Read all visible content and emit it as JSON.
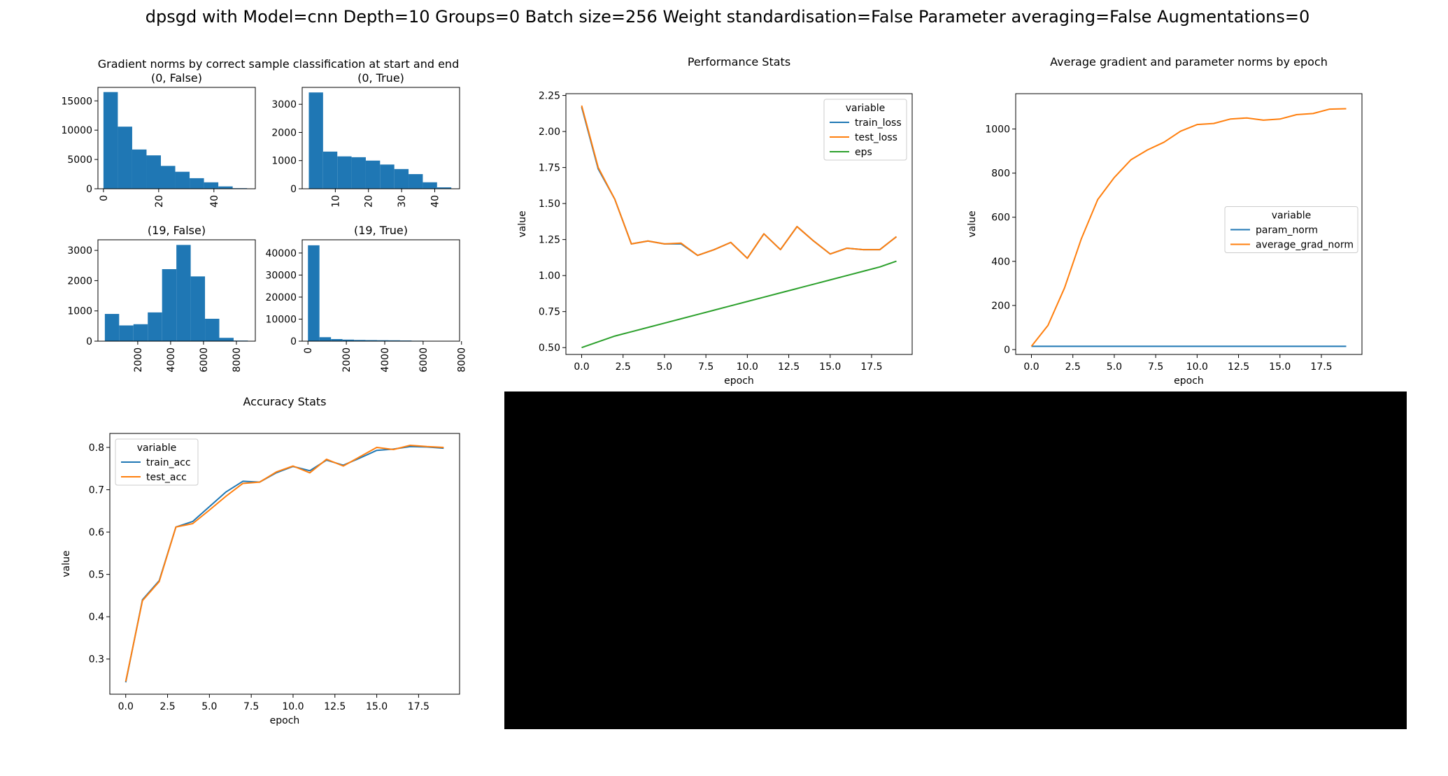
{
  "page_title": "dpsgd with Model=cnn Depth=10 Groups=0 Batch size=256 Weight standardisation=False Parameter averaging=False Augmentations=0",
  "colors": {
    "blue": "#1f77b4",
    "orange": "#ff7f0e",
    "green": "#2ca02c",
    "black_panel": "#000000"
  },
  "chart_data": [
    {
      "id": "gradient_norms",
      "type": "bar",
      "title": "Gradient norms by correct sample classification at start and end",
      "subplots": [
        {
          "id": "hist00",
          "title": "(0, False)",
          "type": "histogram",
          "bin_edges": [
            0,
            5.2,
            10.4,
            15.6,
            20.8,
            26.0,
            31.2,
            36.4,
            41.6,
            46.8,
            52.0
          ],
          "values": [
            16500,
            10600,
            6700,
            5700,
            3900,
            2900,
            1800,
            1100,
            400,
            100
          ],
          "xlim": [
            -2,
            55
          ],
          "ylim": [
            0,
            17300
          ],
          "xticks": [
            0,
            20,
            40
          ],
          "yticks": [
            0,
            5000,
            10000,
            15000
          ]
        },
        {
          "id": "hist01",
          "title": "(0, True)",
          "type": "histogram",
          "bin_edges": [
            2,
            6.3,
            10.6,
            14.9,
            19.2,
            23.5,
            27.8,
            32.1,
            36.4,
            40.7,
            45.0
          ],
          "values": [
            3420,
            1320,
            1150,
            1120,
            1000,
            860,
            700,
            520,
            230,
            50
          ],
          "xlim": [
            0,
            47.5
          ],
          "ylim": [
            0,
            3600
          ],
          "xticks": [
            10,
            20,
            30,
            40
          ],
          "yticks": [
            0,
            1000,
            2000,
            3000
          ]
        },
        {
          "id": "hist10",
          "title": "(19, False)",
          "type": "histogram",
          "bin_edges": [
            0,
            870,
            1740,
            2610,
            3480,
            4350,
            5220,
            6090,
            6960,
            7830,
            8700
          ],
          "values": [
            900,
            520,
            560,
            950,
            2380,
            3180,
            2140,
            740,
            110,
            20
          ],
          "xlim": [
            -420,
            9150
          ],
          "ylim": [
            0,
            3350
          ],
          "xticks": [
            2000,
            4000,
            6000,
            8000
          ],
          "yticks": [
            0,
            1000,
            2000,
            3000
          ]
        },
        {
          "id": "hist11",
          "title": "(19, True)",
          "type": "histogram",
          "bin_edges": [
            0,
            600,
            1200,
            1800,
            2400,
            3000,
            3600,
            4200,
            4800,
            5400,
            6000
          ],
          "values": [
            43500,
            1800,
            950,
            700,
            550,
            480,
            420,
            380,
            300,
            200
          ],
          "xlim": [
            -300,
            7900
          ],
          "ylim": [
            0,
            46000
          ],
          "xticks": [
            0,
            2000,
            4000,
            6000,
            8000
          ],
          "yticks": [
            0,
            10000,
            20000,
            30000,
            40000
          ]
        }
      ]
    },
    {
      "id": "performance",
      "type": "line",
      "title": "Performance Stats",
      "xlabel": "epoch",
      "ylabel": "value",
      "xlim": [
        -0.95,
        19.95
      ],
      "ylim": [
        0.4525,
        2.2625
      ],
      "xticks": [
        0.0,
        2.5,
        5.0,
        7.5,
        10.0,
        12.5,
        15.0,
        17.5
      ],
      "yticks": [
        0.5,
        0.75,
        1.0,
        1.25,
        1.5,
        1.75,
        2.0,
        2.25
      ],
      "x": [
        0,
        1,
        2,
        3,
        4,
        5,
        6,
        7,
        8,
        9,
        10,
        11,
        12,
        13,
        14,
        15,
        16,
        17,
        18,
        19
      ],
      "legend": {
        "title": "variable",
        "position": "upper right"
      },
      "series": [
        {
          "name": "train_loss",
          "color": "#1f77b4",
          "values": [
            2.17,
            1.74,
            1.53,
            1.22,
            1.24,
            1.22,
            1.22,
            1.14,
            1.18,
            1.23,
            1.12,
            1.29,
            1.18,
            1.34,
            1.24,
            1.15,
            1.19,
            1.18,
            1.18,
            1.27
          ]
        },
        {
          "name": "test_loss",
          "color": "#ff7f0e",
          "values": [
            2.18,
            1.75,
            1.53,
            1.22,
            1.24,
            1.22,
            1.225,
            1.14,
            1.18,
            1.23,
            1.12,
            1.29,
            1.18,
            1.34,
            1.24,
            1.15,
            1.19,
            1.18,
            1.18,
            1.27
          ]
        },
        {
          "name": "eps",
          "color": "#2ca02c",
          "values": [
            0.5,
            0.54,
            0.58,
            0.61,
            0.64,
            0.67,
            0.7,
            0.73,
            0.76,
            0.79,
            0.82,
            0.85,
            0.88,
            0.91,
            0.94,
            0.97,
            1.0,
            1.03,
            1.06,
            1.1
          ]
        }
      ]
    },
    {
      "id": "avg_norms",
      "type": "line",
      "title": "Average gradient and parameter norms by epoch",
      "xlabel": "epoch",
      "ylabel": "value",
      "xlim": [
        -0.95,
        19.95
      ],
      "ylim": [
        -22,
        1160
      ],
      "xticks": [
        0.0,
        2.5,
        5.0,
        7.5,
        10.0,
        12.5,
        15.0,
        17.5
      ],
      "yticks": [
        0,
        200,
        400,
        600,
        800,
        1000
      ],
      "x": [
        0,
        1,
        2,
        3,
        4,
        5,
        6,
        7,
        8,
        9,
        10,
        11,
        12,
        13,
        14,
        15,
        16,
        17,
        18,
        19
      ],
      "legend": {
        "title": "variable",
        "position": "center right"
      },
      "series": [
        {
          "name": "param_norm",
          "color": "#1f77b4",
          "values": [
            15,
            15,
            15,
            15,
            15,
            15,
            15,
            15,
            15,
            15,
            15,
            15,
            15,
            15,
            15,
            15,
            15,
            15,
            15,
            15
          ]
        },
        {
          "name": "average_grad_norm",
          "color": "#ff7f0e",
          "values": [
            15,
            110,
            280,
            500,
            680,
            780,
            860,
            905,
            940,
            990,
            1020,
            1025,
            1045,
            1050,
            1040,
            1045,
            1065,
            1070,
            1090,
            1092
          ]
        }
      ]
    },
    {
      "id": "accuracy",
      "type": "line",
      "title": "Accuracy Stats",
      "xlabel": "epoch",
      "ylabel": "value",
      "xlim": [
        -0.95,
        19.95
      ],
      "ylim": [
        0.217,
        0.833
      ],
      "xticks": [
        0.0,
        2.5,
        5.0,
        7.5,
        10.0,
        12.5,
        15.0,
        17.5
      ],
      "yticks": [
        0.3,
        0.4,
        0.5,
        0.6,
        0.7,
        0.8
      ],
      "x": [
        0,
        1,
        2,
        3,
        4,
        5,
        6,
        7,
        8,
        9,
        10,
        11,
        12,
        13,
        14,
        15,
        16,
        17,
        18,
        19
      ],
      "legend": {
        "title": "variable",
        "position": "upper left"
      },
      "series": [
        {
          "name": "train_acc",
          "color": "#1f77b4",
          "values": [
            0.245,
            0.44,
            0.485,
            0.612,
            0.625,
            0.66,
            0.695,
            0.72,
            0.718,
            0.74,
            0.755,
            0.745,
            0.77,
            0.758,
            0.775,
            0.793,
            0.796,
            0.802,
            0.801,
            0.798
          ]
        },
        {
          "name": "test_acc",
          "color": "#ff7f0e",
          "values": [
            0.247,
            0.438,
            0.483,
            0.612,
            0.62,
            0.652,
            0.685,
            0.715,
            0.718,
            0.742,
            0.756,
            0.74,
            0.772,
            0.756,
            0.778,
            0.8,
            0.795,
            0.805,
            0.802,
            0.8
          ]
        }
      ]
    }
  ]
}
